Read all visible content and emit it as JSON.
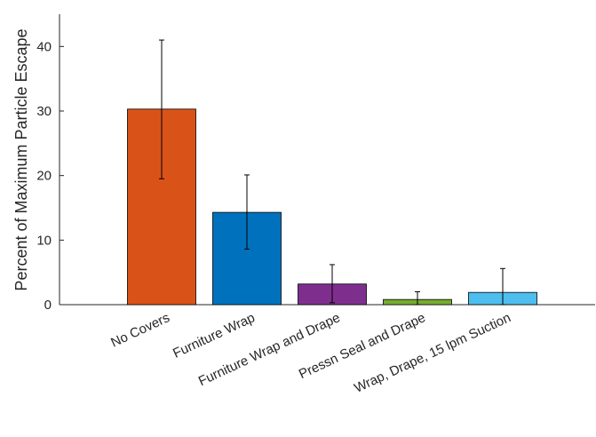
{
  "chart_data": {
    "type": "bar",
    "title": "",
    "xlabel": "",
    "ylabel": "Percent of Maximum Particle Escape",
    "categories": [
      "No Covers",
      "Furniture Wrap",
      "Furniture Wrap and Drape",
      "Pressn Seal and Drape",
      "Wrap, Drape, 15 lpm Suction"
    ],
    "values": [
      30.3,
      14.3,
      3.2,
      0.8,
      1.9
    ],
    "error_low": [
      19.5,
      8.6,
      0.3,
      0.0,
      0.0
    ],
    "error_high": [
      41.0,
      20.1,
      6.2,
      2.0,
      5.6
    ],
    "bar_colors": [
      "#D95319",
      "#0072BD",
      "#7E2F8E",
      "#77AC30",
      "#4DBEEE"
    ],
    "ylim": [
      0,
      45
    ],
    "yticks": [
      0,
      10,
      20,
      30,
      40
    ],
    "ytick_labels": [
      "0",
      "10",
      "20",
      "30",
      "40"
    ],
    "grid": false,
    "legend": "none"
  }
}
